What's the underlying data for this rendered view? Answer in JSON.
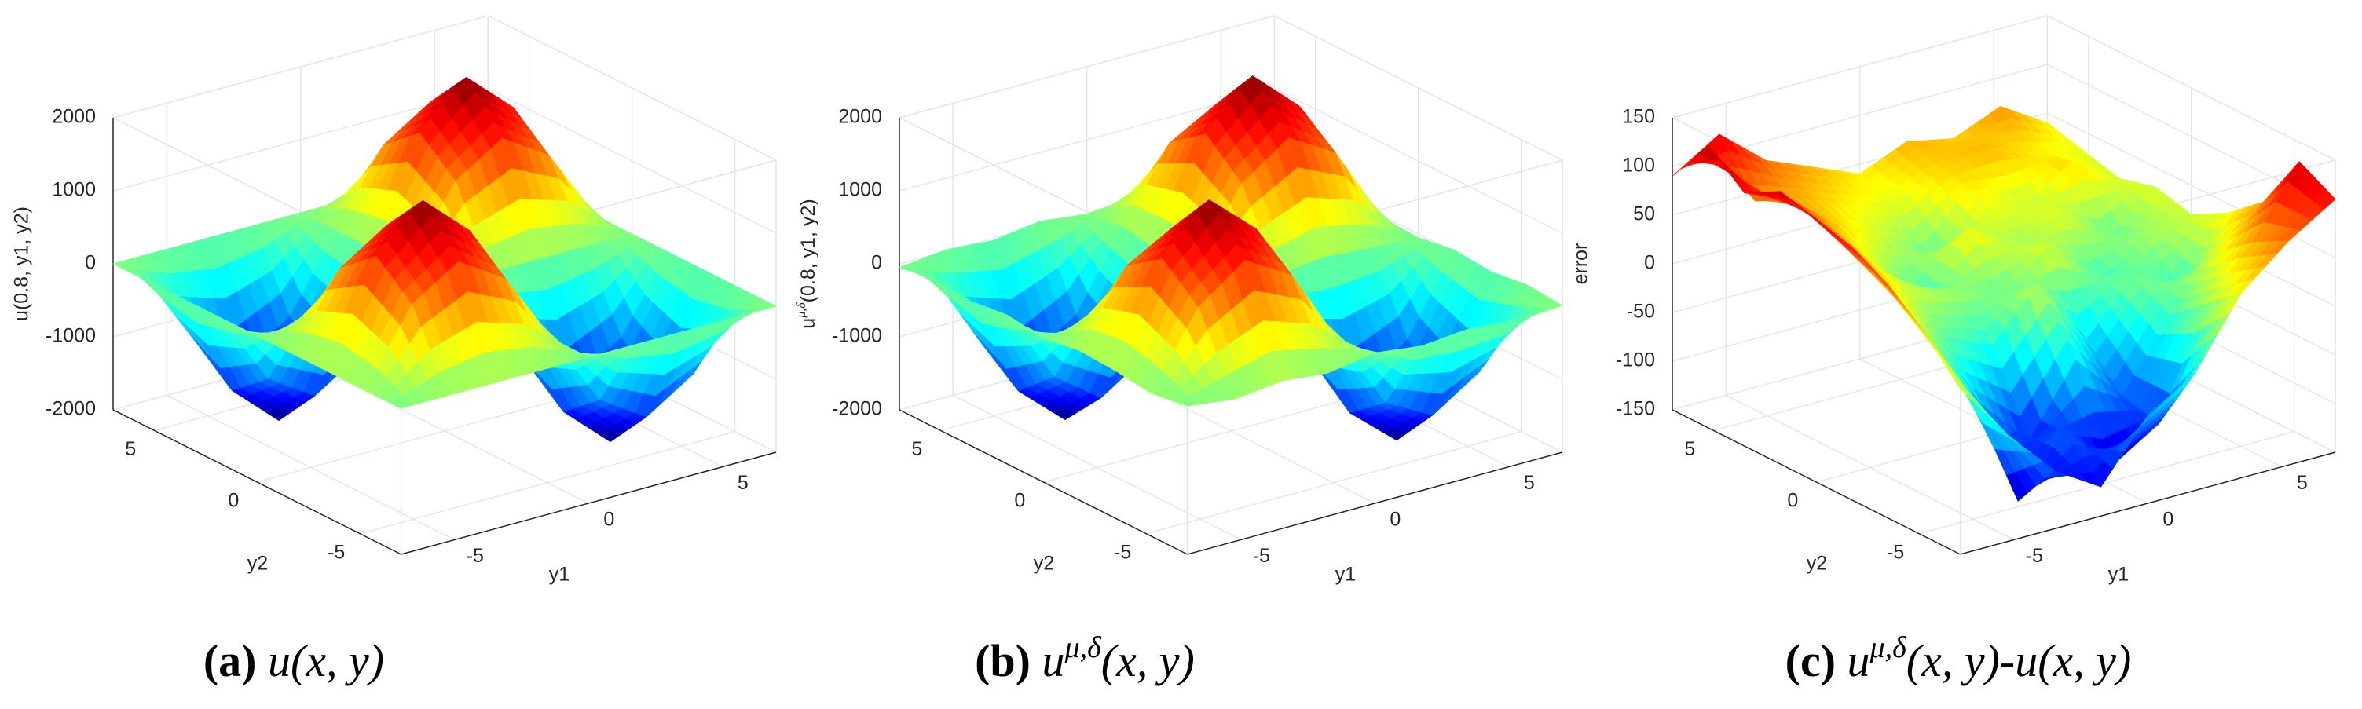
{
  "chart_data": [
    {
      "type": "surface",
      "zlabel": "u(0.8, y1, y2)",
      "xlabel": "y1",
      "ylabel": "y2",
      "caption": {
        "label": "(a)",
        "base": "u(x, y)"
      },
      "x": [
        -7,
        -5.25,
        -3.5,
        -1.75,
        0,
        1.75,
        3.5,
        5.25,
        7
      ],
      "y": [
        -7,
        -5.25,
        -3.5,
        -1.75,
        0,
        1.75,
        3.5,
        5.25,
        7
      ],
      "z": [
        [
          0,
          0,
          0,
          0,
          0,
          0,
          0,
          0,
          0
        ],
        [
          0,
          1000,
          1414,
          1000,
          0,
          -1000,
          -1414,
          -1000,
          0
        ],
        [
          0,
          1414,
          2000,
          1414,
          0,
          -1414,
          -2000,
          -1414,
          0
        ],
        [
          0,
          1000,
          1414,
          1000,
          0,
          -1000,
          -1414,
          -1000,
          0
        ],
        [
          0,
          0,
          0,
          0,
          0,
          0,
          0,
          0,
          0
        ],
        [
          0,
          -1000,
          -1414,
          -1000,
          0,
          1000,
          1414,
          1000,
          0
        ],
        [
          0,
          -1414,
          -2000,
          -1414,
          0,
          1414,
          2000,
          1414,
          0
        ],
        [
          0,
          -1000,
          -1414,
          -1000,
          0,
          1000,
          1414,
          1000,
          0
        ],
        [
          0,
          0,
          0,
          0,
          0,
          0,
          0,
          0,
          0
        ]
      ],
      "xlim": [
        -7,
        7
      ],
      "ylim": [
        -7,
        7
      ],
      "zlim": [
        -2000,
        2000
      ],
      "xticks": [
        -5,
        0,
        5
      ],
      "yticks": [
        -5,
        0,
        5
      ],
      "zticks": [
        -2000,
        -1000,
        0,
        1000,
        2000
      ],
      "colormap": "jet",
      "grid": true
    },
    {
      "type": "surface",
      "zlabel": {
        "base": "u",
        "sup": "μ,δ",
        "rest": "(0.8, y1, y2)"
      },
      "xlabel": "y1",
      "ylabel": "y2",
      "caption": {
        "label": "(b)",
        "base": "u",
        "sup": "μ,δ",
        "rest": "(x, y)"
      },
      "x": [
        -7,
        -5.25,
        -3.5,
        -1.75,
        0,
        1.75,
        3.5,
        5.25,
        7
      ],
      "y": [
        -7,
        -5.25,
        -3.5,
        -1.75,
        0,
        1.75,
        3.5,
        5.25,
        7
      ],
      "z": [
        [
          30,
          -50,
          20,
          -40,
          60,
          -20,
          40,
          -30,
          10
        ],
        [
          -40,
          960,
          1430,
          1050,
          -30,
          -1040,
          -1390,
          -970,
          50
        ],
        [
          20,
          1380,
          2010,
          1440,
          40,
          -1430,
          -1980,
          -1400,
          -20
        ],
        [
          50,
          1030,
          1390,
          980,
          -50,
          -990,
          -1420,
          -1030,
          30
        ],
        [
          -30,
          40,
          -60,
          20,
          50,
          -40,
          30,
          -20,
          -50
        ],
        [
          40,
          -970,
          -1440,
          -1020,
          30,
          960,
          1420,
          1040,
          -30
        ],
        [
          -20,
          -1420,
          -1990,
          -1390,
          -40,
          1400,
          2020,
          1430,
          20
        ],
        [
          30,
          -1030,
          -1400,
          -980,
          50,
          1030,
          1390,
          990,
          -40
        ],
        [
          -50,
          20,
          -30,
          60,
          -20,
          40,
          -60,
          30,
          10
        ]
      ],
      "xlim": [
        -7,
        7
      ],
      "ylim": [
        -7,
        7
      ],
      "zlim": [
        -2000,
        2000
      ],
      "xticks": [
        -5,
        0,
        5
      ],
      "yticks": [
        -5,
        0,
        5
      ],
      "zticks": [
        -2000,
        -1000,
        0,
        1000,
        2000
      ],
      "colormap": "jet",
      "grid": true
    },
    {
      "type": "surface",
      "zlabel": "error",
      "xlabel": "y1",
      "ylabel": "y2",
      "caption": {
        "label": "(c)",
        "base": "u",
        "sup": "μ,δ",
        "rest": "(x, y)-u(x, y)"
      },
      "x": [
        -7,
        -5.25,
        -3.5,
        -1.75,
        0,
        1.75,
        3.5,
        5.25,
        7
      ],
      "y": [
        -7,
        -5.25,
        -3.5,
        -1.75,
        0,
        1.75,
        3.5,
        5.25,
        7
      ],
      "z": [
        [
          20,
          -40,
          -90,
          -120,
          -60,
          -30,
          40,
          80,
          110
        ],
        [
          60,
          -20,
          -140,
          -80,
          -130,
          -100,
          10,
          60,
          130
        ],
        [
          90,
          10,
          -60,
          -110,
          -40,
          -90,
          -20,
          30,
          70
        ],
        [
          110,
          40,
          -10,
          -30,
          20,
          -50,
          0,
          -20,
          40
        ],
        [
          120,
          60,
          20,
          10,
          -10,
          30,
          -20,
          10,
          20
        ],
        [
          130,
          80,
          30,
          -20,
          40,
          10,
          30,
          -10,
          30
        ],
        [
          110,
          90,
          50,
          20,
          -10,
          40,
          20,
          50,
          20
        ],
        [
          140,
          70,
          60,
          40,
          30,
          50,
          60,
          40,
          30
        ],
        [
          90,
          120,
          80,
          60,
          40,
          60,
          50,
          70,
          40
        ]
      ],
      "xlim": [
        -7,
        7
      ],
      "ylim": [
        -7,
        7
      ],
      "zlim": [
        -150,
        150
      ],
      "xticks": [
        -5,
        0,
        5
      ],
      "yticks": [
        -5,
        0,
        5
      ],
      "zticks": [
        -150,
        -100,
        -50,
        0,
        50,
        100,
        150
      ],
      "colormap": "jet",
      "grid": true
    }
  ]
}
